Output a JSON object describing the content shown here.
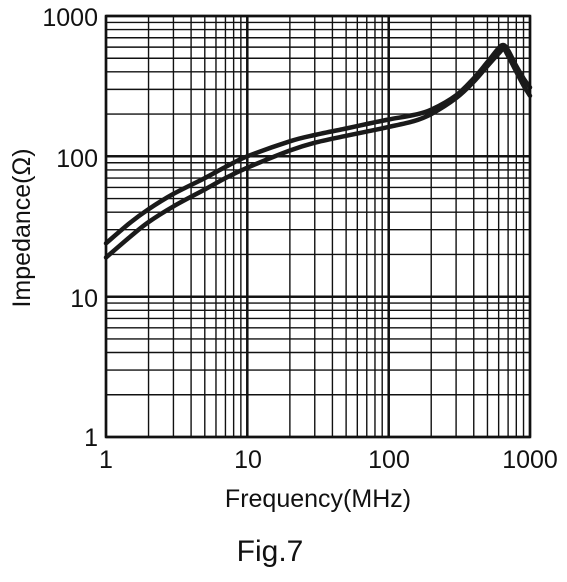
{
  "caption": "Fig.7",
  "chart_data": {
    "type": "line",
    "title": "",
    "xlabel": "Frequency(MHz)",
    "ylabel": "Impedance(Ω)",
    "xscale": "log",
    "yscale": "log",
    "xlim": [
      1,
      1000
    ],
    "ylim": [
      1,
      1000
    ],
    "grid": true,
    "x_tick_labels": [
      "1",
      "10",
      "100",
      "1000"
    ],
    "y_tick_labels": [
      "1",
      "10",
      "100",
      "1000"
    ],
    "series": [
      {
        "x": [
          1,
          1.5,
          2,
          3,
          5,
          7,
          10,
          20,
          30,
          50,
          70,
          100,
          150,
          200,
          300,
          400,
          500,
          600,
          650,
          700,
          800,
          900,
          1000
        ],
        "y": [
          24,
          34,
          42,
          54,
          70,
          84,
          100,
          128,
          142,
          158,
          170,
          183,
          197,
          215,
          272,
          360,
          470,
          590,
          620,
          570,
          440,
          360,
          310
        ]
      },
      {
        "x": [
          1,
          1.5,
          2,
          3,
          5,
          7,
          10,
          20,
          30,
          50,
          70,
          100,
          150,
          200,
          300,
          400,
          500,
          600,
          650,
          700,
          800,
          900,
          1000
        ],
        "y": [
          19,
          27,
          34,
          44,
          58,
          70,
          83,
          110,
          125,
          140,
          150,
          162,
          178,
          200,
          260,
          340,
          440,
          540,
          580,
          520,
          400,
          320,
          270
        ]
      }
    ]
  }
}
